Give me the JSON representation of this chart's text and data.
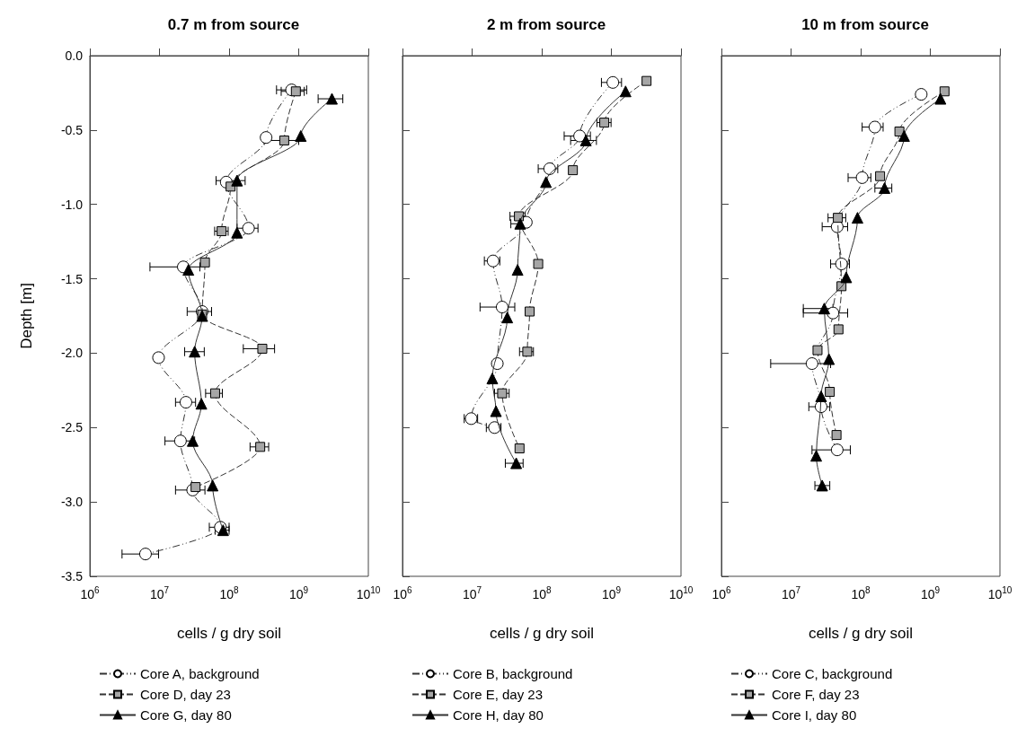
{
  "chart_data": [
    {
      "type": "line",
      "title": "0.7 m from source",
      "xlabel": "cells / g dry soil",
      "ylabel": "Depth [m]",
      "log": "x",
      "legend": "bottom",
      "xlim": [
        1000000,
        10000000000
      ],
      "xticks": [
        {
          "value": 1000000,
          "label": "10$^{6}$"
        },
        {
          "value": 10000000,
          "label": "10$^{7}$"
        },
        {
          "value": 100000000,
          "label": "10$^{8}$"
        },
        {
          "value": 1000000000,
          "label": "10$^{9}$"
        },
        {
          "value": 10000000000,
          "label": "10$^{10}$"
        }
      ],
      "ylim": [
        -3.5,
        0
      ],
      "yticks": [
        {
          "value": -3.5,
          "label": "-3.5"
        },
        {
          "value": -3,
          "label": "-3.0"
        },
        {
          "value": -2.5,
          "label": "-2.5"
        },
        {
          "value": -2,
          "label": "-2.0"
        },
        {
          "value": -1.5,
          "label": "-1.5"
        },
        {
          "value": -1,
          "label": "-1.0"
        },
        {
          "value": -0.5,
          "label": "-0.5"
        },
        {
          "value": 0,
          "label": "0.0"
        }
      ],
      "series": [
        {
          "name": "Core A, background",
          "color": "#ffffff",
          "marker": "circle",
          "line_style": "dotted",
          "x": [
            790000000,
            340000000,
            91000000,
            190000000,
            22000000,
            41000000,
            9700000,
            24000000,
            20000000,
            30000000,
            75000000,
            6300000
          ],
          "values": [
            -0.23,
            -0.55,
            -0.85,
            -1.16,
            -1.42,
            -1.72,
            -2.03,
            -2.33,
            -2.59,
            -2.92,
            -3.17,
            -3.35
          ],
          "xerrors": [
            [
              480000000,
              1300000000
            ],
            null,
            null,
            [
              130000000,
              260000000
            ],
            [
              7300000,
              38000000
            ],
            [
              25000000,
              56000000
            ],
            [
              8500000,
              11000000
            ],
            [
              17000000,
              33000000
            ],
            [
              12000000,
              32000000
            ],
            [
              17000000,
              45000000
            ],
            [
              52000000,
              100000000
            ],
            [
              2900000,
              9700000
            ]
          ]
        },
        {
          "name": "Core D, day 23",
          "color": "#a6a6a6",
          "marker": "square",
          "line_style": "dashed",
          "x": [
            910000000,
            620000000,
            105000000,
            78000000,
            45000000,
            41000000,
            300000000,
            63000000,
            280000000,
            33000000
          ],
          "values": [
            -0.24,
            -0.57,
            -0.88,
            -1.18,
            -1.39,
            -1.74,
            -1.97,
            -2.27,
            -2.63,
            -2.9
          ],
          "xerrors": [
            [
              560000000,
              1200000000
            ],
            [
              320000000,
              1000000000
            ],
            null,
            [
              62000000,
              97000000
            ],
            null,
            null,
            [
              160000000,
              450000000
            ],
            [
              46000000,
              80000000
            ],
            [
              200000000,
              370000000
            ],
            null
          ]
        },
        {
          "name": "Core G, day 80",
          "color": "#000000",
          "marker": "triangle",
          "line_style": "solid",
          "x": [
            3000000000,
            1070000000,
            130000000,
            130000000,
            26000000,
            41000000,
            32000000,
            40000000,
            30000000,
            58000000,
            82000000
          ],
          "values": [
            -0.29,
            -0.54,
            -0.84,
            -1.19,
            -1.44,
            -1.75,
            -1.99,
            -2.34,
            -2.59,
            -2.89,
            -3.19
          ],
          "xerrors": [
            [
              1900000000,
              4300000000
            ],
            null,
            [
              65000000,
              170000000
            ],
            null,
            null,
            null,
            [
              23000000,
              44000000
            ],
            null,
            null,
            null,
            [
              63000000,
              100000000
            ]
          ]
        }
      ]
    },
    {
      "type": "line",
      "title": "2 m from source",
      "xlabel": "cells / g dry soil",
      "log": "x",
      "legend": "bottom",
      "tick_labels": "x",
      "xlim": [
        1000000,
        10000000000
      ],
      "xticks": [
        {
          "value": 1000000,
          "label": "10$^{6}$"
        },
        {
          "value": 10000000,
          "label": "10$^{7}$"
        },
        {
          "value": 100000000,
          "label": "10$^{8}$"
        },
        {
          "value": 1000000000,
          "label": "10$^{9}$"
        },
        {
          "value": 10000000000,
          "label": "10$^{10}$"
        }
      ],
      "ylim": [
        -3.5,
        0
      ],
      "yticks": [
        -3.5,
        -3,
        -2.5,
        -2,
        -1.5,
        -1,
        -0.5,
        0
      ],
      "series": [
        {
          "name": "Core B, background",
          "color": "#ffffff",
          "marker": "circle",
          "line_style": "dotted",
          "x": [
            1050000000,
            350000000,
            130000000,
            60000000,
            20000000,
            27000000,
            23000000,
            9700000,
            21000000
          ],
          "values": [
            -0.18,
            -0.54,
            -0.76,
            -1.12,
            -1.38,
            -1.69,
            -2.07,
            -2.44,
            -2.5
          ],
          "xerrors": [
            [
              720000000,
              1400000000
            ],
            [
              210000000,
              500000000
            ],
            [
              89000000,
              170000000
            ],
            null,
            [
              15000000,
              25000000
            ],
            [
              13000000,
              41000000
            ],
            null,
            [
              7700000,
              12000000
            ],
            [
              16000000,
              26000000
            ]
          ]
        },
        {
          "name": "Core E, day 23",
          "color": "#a6a6a6",
          "marker": "square",
          "line_style": "dashed",
          "x": [
            3200000000,
            790000000,
            280000000,
            47000000,
            89000000,
            67000000,
            62000000,
            27000000,
            48000000
          ],
          "values": [
            -0.17,
            -0.45,
            -0.77,
            -1.08,
            -1.4,
            -1.72,
            -1.99,
            -2.27,
            -2.64
          ],
          "xerrors": [
            null,
            [
              620000000,
              990000000
            ],
            null,
            [
              35000000,
              58000000
            ],
            null,
            null,
            [
              48000000,
              76000000
            ],
            [
              21000000,
              34000000
            ],
            null
          ]
        },
        {
          "name": "Core H, day 80",
          "color": "#000000",
          "marker": "triangle",
          "line_style": "solid",
          "x": [
            1600000000,
            430000000,
            115000000,
            49000000,
            45000000,
            32000000,
            19500000,
            22000000,
            43000000
          ],
          "values": [
            -0.24,
            -0.57,
            -0.85,
            -1.13,
            -1.44,
            -1.76,
            -2.17,
            -2.39,
            -2.74
          ],
          "xerrors": [
            null,
            [
              260000000,
              610000000
            ],
            null,
            [
              36000000,
              63000000
            ],
            null,
            null,
            null,
            null,
            [
              30000000,
              54000000
            ]
          ]
        }
      ]
    },
    {
      "type": "line",
      "title": "10 m from source",
      "xlabel": "cells / g dry soil",
      "log": "x",
      "legend": "bottom",
      "tick_labels": "x",
      "xlim": [
        1000000,
        10000000000
      ],
      "xticks": [
        {
          "value": 1000000,
          "label": "10$^{6}$"
        },
        {
          "value": 10000000,
          "label": "10$^{7}$"
        },
        {
          "value": 100000000,
          "label": "10$^{8}$"
        },
        {
          "value": 1000000000,
          "label": "10$^{9}$"
        },
        {
          "value": 10000000000,
          "label": "10$^{10}$"
        }
      ],
      "ylim": [
        -3.5,
        0
      ],
      "yticks": [
        -3.5,
        -3,
        -2.5,
        -2,
        -1.5,
        -1,
        -0.5,
        0
      ],
      "series": [
        {
          "name": "Core C, background",
          "color": "#ffffff",
          "marker": "circle",
          "line_style": "dotted",
          "x": [
            740000000,
            160000000,
            105000000,
            46000000,
            53000000,
            40000000,
            20000000,
            27000000,
            46000000
          ],
          "values": [
            -0.26,
            -0.48,
            -0.82,
            -1.15,
            -1.4,
            -1.73,
            -2.07,
            -2.36,
            -2.65
          ],
          "xerrors": [
            null,
            [
              105000000,
              210000000
            ],
            [
              66000000,
              140000000
            ],
            [
              28000000,
              65000000
            ],
            [
              37000000,
              69000000
            ],
            [
              15000000,
              65000000
            ],
            [
              5100000,
              37000000
            ],
            [
              18000000,
              36000000
            ],
            [
              20000000,
              71000000
            ]
          ]
        },
        {
          "name": "Core F, day 23",
          "color": "#a6a6a6",
          "marker": "square",
          "line_style": "dashed",
          "x": [
            1600000000,
            360000000,
            190000000,
            47000000,
            53000000,
            48000000,
            24000000,
            36000000,
            45000000
          ],
          "values": [
            -0.24,
            -0.51,
            -0.81,
            -1.09,
            -1.55,
            -1.84,
            -1.98,
            -2.26,
            -2.55
          ],
          "xerrors": [
            null,
            null,
            null,
            [
              34000000,
              61000000
            ],
            null,
            null,
            null,
            null,
            null
          ]
        },
        {
          "name": "Core I, day 80",
          "color": "#000000",
          "marker": "triangle",
          "line_style": "solid",
          "x": [
            1400000000,
            420000000,
            220000000,
            90000000,
            62000000,
            30000000,
            35000000,
            27000000,
            23000000,
            28000000
          ],
          "values": [
            -0.29,
            -0.54,
            -0.89,
            -1.09,
            -1.49,
            -1.7,
            -2.04,
            -2.29,
            -2.69,
            -2.89
          ],
          "xerrors": [
            null,
            null,
            [
              160000000,
              280000000
            ],
            null,
            null,
            [
              15000000,
              40000000
            ],
            null,
            null,
            null,
            [
              22000000,
              36000000
            ]
          ]
        }
      ]
    }
  ]
}
